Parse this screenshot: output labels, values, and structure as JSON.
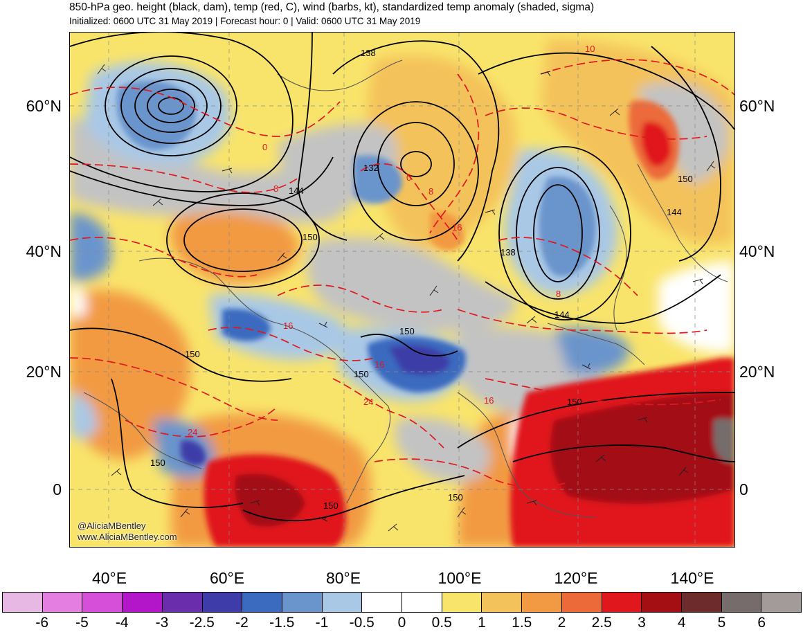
{
  "header": {
    "title": "850-hPa geo. height (black, dam), temp (red, C), wind (barbs, kt), standardized temp anomaly (shaded, sigma)",
    "subtitle": "Initialized: 0600 UTC 31 May 2019 | Forecast hour: 0 | Valid: 0600 UTC 31 May 2019"
  },
  "map": {
    "lat_labels": [
      "60°N",
      "40°N",
      "20°N",
      "0"
    ],
    "lon_labels": [
      "40°E",
      "60°E",
      "80°E",
      "100°E",
      "120°E",
      "140°E"
    ],
    "height_contour_labels": [
      "138",
      "132",
      "144",
      "150",
      "138",
      "150",
      "144",
      "144",
      "150",
      "150",
      "150",
      "150",
      "150",
      "150",
      "150"
    ],
    "temp_contour_labels": [
      "0",
      "8",
      "0",
      "8",
      "16",
      "16",
      "8",
      "24",
      "16",
      "24",
      "10",
      "16"
    ],
    "credit_line1": "@AliciaMBentley",
    "credit_line2": "www.AliciaMBentley.com",
    "colors": {
      "height_contour": "#000000",
      "temp_contour": "#e0181e",
      "land_gray": "#c3c3c3"
    }
  },
  "colorbar": {
    "tick_labels": [
      "-6",
      "-5",
      "-4",
      "-3",
      "-2.5",
      "-2",
      "-1.5",
      "-1",
      "-0.5",
      "0",
      "0.5",
      "1",
      "1.5",
      "2",
      "2.5",
      "3",
      "4",
      "5",
      "6"
    ],
    "colors": [
      "#e8b8e4",
      "#e47ee0",
      "#d64fd8",
      "#b316c8",
      "#6a2dab",
      "#3d3ca8",
      "#3b6bbf",
      "#6a94cc",
      "#a9c8e6",
      "#ffffff",
      "#ffffff",
      "#f9e46b",
      "#f4c25a",
      "#f29a43",
      "#ec6a3a",
      "#e0181e",
      "#a30f13",
      "#6e2b2b",
      "#766c6c",
      "#a39a9a"
    ]
  }
}
